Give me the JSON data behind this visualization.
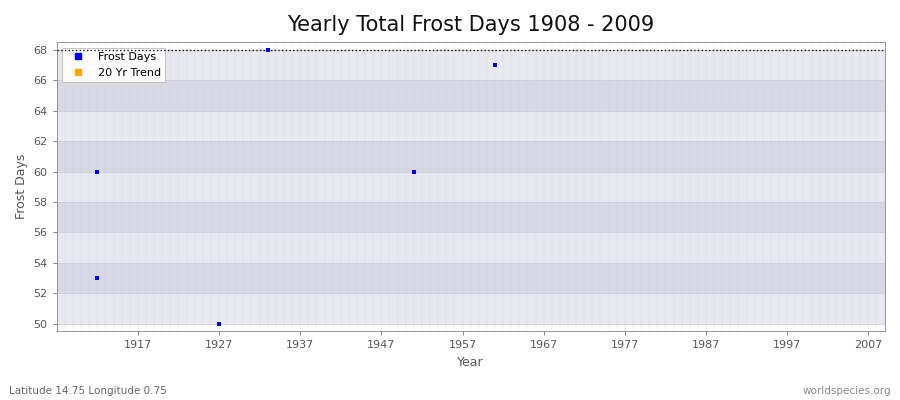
{
  "title": "Yearly Total Frost Days 1908 - 2009",
  "xlabel": "Year",
  "ylabel": "Frost Days",
  "bottom_left_label": "Latitude 14.75 Longitude 0.75",
  "bottom_right_label": "worldspecies.org",
  "xlim": [
    1907,
    2009
  ],
  "ylim": [
    49.5,
    68.5
  ],
  "yticks": [
    50,
    52,
    54,
    56,
    58,
    60,
    62,
    64,
    66,
    68
  ],
  "xticks": [
    1917,
    1927,
    1937,
    1947,
    1957,
    1967,
    1977,
    1987,
    1997,
    2007
  ],
  "hline_y": 68,
  "hline_style": "dotted",
  "hline_color": "#111111",
  "frost_days_x": [
    1912,
    1912,
    1927,
    1933,
    1951,
    1961
  ],
  "frost_days_y": [
    60,
    53,
    50,
    68,
    60,
    67
  ],
  "frost_color": "#0000ee",
  "frost_marker": "s",
  "frost_marker_size": 2.5,
  "fig_bg_color": "#ffffff",
  "plot_bg_color": "#f0f0f5",
  "band_light_color": "#e8e8f0",
  "band_dark_color": "#d8d8e4",
  "grid_major_color": "#ccccdd",
  "grid_minor_color": "#ccccdd",
  "legend_frost_label": "Frost Days",
  "legend_trend_label": "20 Yr Trend",
  "legend_trend_color": "#ffa500",
  "title_fontsize": 15,
  "axis_label_fontsize": 9,
  "tick_fontsize": 8,
  "tick_color": "#555555"
}
